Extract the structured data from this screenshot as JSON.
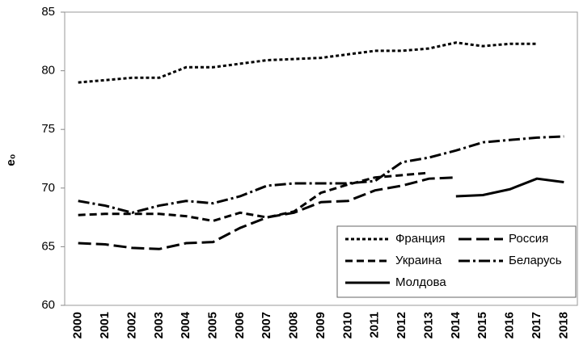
{
  "chart_data": {
    "type": "line",
    "ylabel": "e₀",
    "categories": [
      "2000",
      "2001",
      "2002",
      "2003",
      "2004",
      "2005",
      "2006",
      "2007",
      "2008",
      "2009",
      "2010",
      "2011",
      "2012",
      "2013",
      "2014",
      "2015",
      "2016",
      "2017",
      "2018"
    ],
    "series": [
      {
        "name": "Франция",
        "color": "#000000",
        "dash": "4,3",
        "values": [
          79.0,
          79.2,
          79.4,
          79.4,
          80.3,
          80.3,
          80.6,
          80.9,
          81.0,
          81.1,
          81.4,
          81.7,
          81.7,
          81.9,
          82.4,
          82.1,
          82.3,
          82.3,
          null
        ]
      },
      {
        "name": "Россия",
        "color": "#000000",
        "dash": "16,6",
        "values": [
          65.3,
          65.2,
          64.9,
          64.8,
          65.3,
          65.4,
          66.6,
          67.5,
          67.9,
          68.8,
          68.9,
          69.8,
          70.2,
          70.8,
          70.9,
          null,
          null,
          null,
          null
        ]
      },
      {
        "name": "Украина",
        "color": "#000000",
        "dash": "9,5",
        "values": [
          67.7,
          67.8,
          67.8,
          67.8,
          67.6,
          67.2,
          67.9,
          67.5,
          68.0,
          69.6,
          70.3,
          70.9,
          71.1,
          71.3,
          null,
          null,
          null,
          null,
          null
        ]
      },
      {
        "name": "Беларусь",
        "color": "#000000",
        "dash": "14,4,3,4",
        "values": [
          68.9,
          68.5,
          67.9,
          68.5,
          68.9,
          68.7,
          69.3,
          70.2,
          70.4,
          70.4,
          70.4,
          70.6,
          72.2,
          72.6,
          73.2,
          73.9,
          74.1,
          74.3,
          74.4
        ]
      },
      {
        "name": "Молдова",
        "color": "#000000",
        "dash": "none",
        "values": [
          null,
          null,
          null,
          null,
          null,
          null,
          null,
          null,
          null,
          null,
          null,
          null,
          null,
          null,
          69.3,
          69.4,
          69.9,
          70.8,
          70.5
        ]
      }
    ],
    "ylim": [
      60,
      85
    ],
    "yticks": [
      60,
      65,
      70,
      75,
      80,
      85
    ],
    "legend": "lower right"
  }
}
